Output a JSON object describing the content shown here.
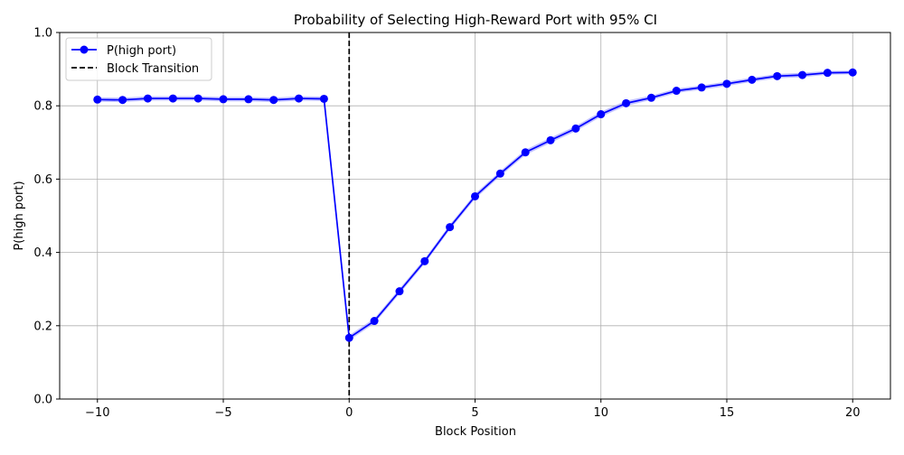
{
  "chart_data": {
    "type": "line",
    "title": "Probability of Selecting High-Reward Port with 95% CI",
    "xlabel": "Block Position",
    "ylabel": "P(high port)",
    "xlim": [
      -11.5,
      21.5
    ],
    "ylim": [
      0.0,
      1.0
    ],
    "x_ticks": [
      -10,
      -5,
      0,
      5,
      10,
      15,
      20
    ],
    "x_tick_labels": [
      "−10",
      "−5",
      "0",
      "5",
      "10",
      "15",
      "20"
    ],
    "y_ticks": [
      0.0,
      0.2,
      0.4,
      0.6,
      0.8,
      1.0
    ],
    "y_tick_labels": [
      "0.0",
      "0.2",
      "0.4",
      "0.6",
      "0.8",
      "1.0"
    ],
    "grid": true,
    "legend_position": "upper-left",
    "series": [
      {
        "name": "P(high port)",
        "color": "#0000ff",
        "marker": "circle",
        "x": [
          -10,
          -9,
          -8,
          -7,
          -6,
          -5,
          -4,
          -3,
          -2,
          -1,
          0,
          1,
          2,
          3,
          4,
          5,
          6,
          7,
          8,
          9,
          10,
          11,
          12,
          13,
          14,
          15,
          16,
          17,
          18,
          19,
          20
        ],
        "y": [
          0.817,
          0.816,
          0.82,
          0.82,
          0.82,
          0.818,
          0.818,
          0.816,
          0.82,
          0.819,
          0.167,
          0.213,
          0.294,
          0.376,
          0.469,
          0.553,
          0.615,
          0.673,
          0.706,
          0.738,
          0.777,
          0.807,
          0.822,
          0.841,
          0.85,
          0.86,
          0.871,
          0.881,
          0.884,
          0.89,
          0.891
        ],
        "ci_low": [
          0.811,
          0.81,
          0.814,
          0.814,
          0.814,
          0.812,
          0.812,
          0.81,
          0.814,
          0.813,
          0.16,
          0.206,
          0.287,
          0.369,
          0.462,
          0.546,
          0.608,
          0.666,
          0.699,
          0.731,
          0.77,
          0.8,
          0.816,
          0.835,
          0.844,
          0.854,
          0.865,
          0.875,
          0.878,
          0.885,
          0.886
        ],
        "ci_high": [
          0.823,
          0.822,
          0.826,
          0.826,
          0.826,
          0.824,
          0.824,
          0.822,
          0.826,
          0.825,
          0.174,
          0.22,
          0.301,
          0.383,
          0.476,
          0.56,
          0.622,
          0.68,
          0.713,
          0.745,
          0.784,
          0.814,
          0.828,
          0.847,
          0.856,
          0.866,
          0.877,
          0.887,
          0.89,
          0.895,
          0.896
        ],
        "ci_color": "#9999ff"
      }
    ],
    "vlines": [
      {
        "name": "Block Transition",
        "x": 0,
        "color": "#000000",
        "style": "dashed"
      }
    ]
  }
}
